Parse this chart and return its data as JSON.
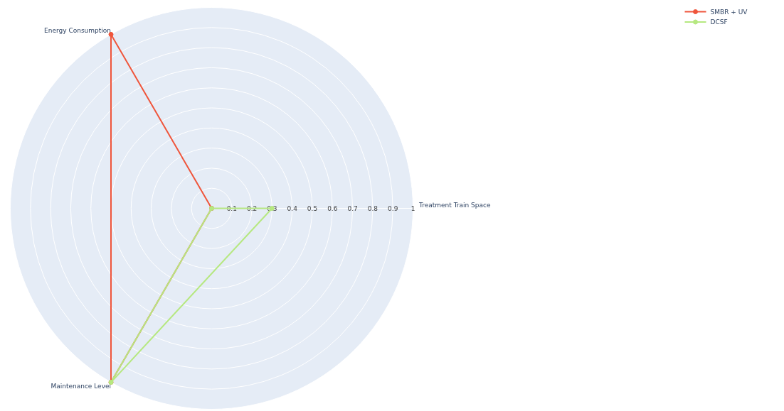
{
  "chart_data": {
    "type": "radar",
    "categories": [
      "Treatment Train Space",
      "Maintenance Level",
      "Energy Consumption"
    ],
    "ylim": [
      0,
      1
    ],
    "yticks": [
      0,
      0.1,
      0.2,
      0.3,
      0.4,
      0.5,
      0.6,
      0.7,
      0.8,
      0.9,
      1
    ],
    "marker": "circle",
    "legend": "top right",
    "grid": true,
    "series": [
      {
        "name": "SMBR + UV",
        "color": "#ef553b",
        "values": [
          0,
          1,
          1
        ]
      },
      {
        "name": "DCSF",
        "color": "#b6e880",
        "values": [
          0.3,
          1,
          0
        ]
      }
    ]
  }
}
